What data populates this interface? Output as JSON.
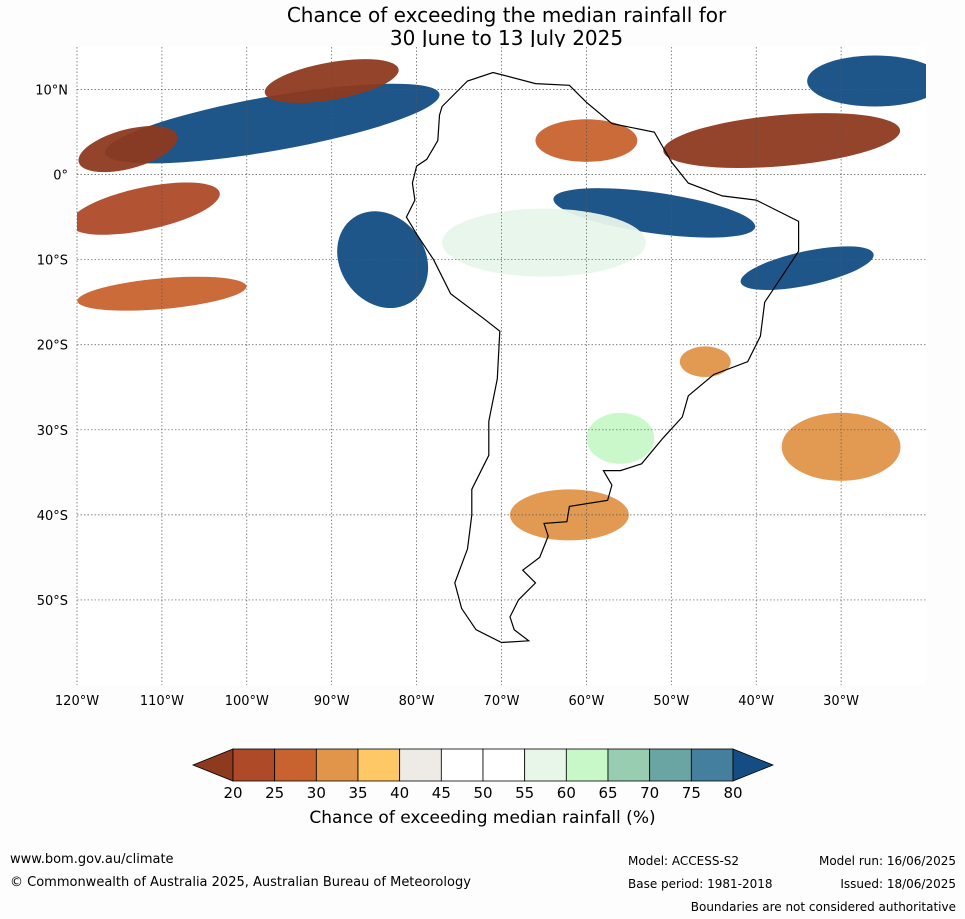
{
  "title": {
    "line1": "Chance of exceeding the median rainfall for",
    "line2": "30 June to 13 July 2025"
  },
  "map": {
    "lon_range": [
      -120,
      -20
    ],
    "lat_range": [
      -60,
      15
    ],
    "lon_ticks": [
      {
        "lon": -120,
        "label": "120°W"
      },
      {
        "lon": -110,
        "label": "110°W"
      },
      {
        "lon": -100,
        "label": "100°W"
      },
      {
        "lon": -90,
        "label": "90°W"
      },
      {
        "lon": -80,
        "label": "80°W"
      },
      {
        "lon": -70,
        "label": "70°W"
      },
      {
        "lon": -60,
        "label": "60°W"
      },
      {
        "lon": -50,
        "label": "50°W"
      },
      {
        "lon": -40,
        "label": "40°W"
      },
      {
        "lon": -30,
        "label": "30°W"
      }
    ],
    "lat_ticks": [
      {
        "lat": 10,
        "label": "10°N"
      },
      {
        "lat": 0,
        "label": "0°"
      },
      {
        "lat": -10,
        "label": "10°S"
      },
      {
        "lat": -20,
        "label": "20°S"
      },
      {
        "lat": -30,
        "label": "30°S"
      },
      {
        "lat": -40,
        "label": "40°S"
      },
      {
        "lat": -50,
        "label": "50°S"
      }
    ],
    "regions": [
      {
        "name": "north-band-west",
        "lon": -97,
        "lat": 6,
        "rx": 20,
        "ry": 3.2,
        "level": 80,
        "rot": 10
      },
      {
        "name": "north-band-east",
        "lon": -26,
        "lat": 11,
        "rx": 8,
        "ry": 3,
        "level": 80,
        "rot": 0
      },
      {
        "name": "equatorial-east",
        "lon": -52,
        "lat": -4.5,
        "rx": 12,
        "ry": 2.4,
        "level": 80,
        "rot": -8
      },
      {
        "name": "ne-brazil-band",
        "lon": -34,
        "lat": -11,
        "rx": 8,
        "ry": 2,
        "level": 80,
        "rot": 12
      },
      {
        "name": "peru-coast",
        "lon": -84,
        "lat": -10,
        "rx": 5,
        "ry": 6,
        "level": 80,
        "rot": 35
      },
      {
        "name": "west-pac-north",
        "lon": -114,
        "lat": 3,
        "rx": 6,
        "ry": 2.3,
        "level": 20,
        "rot": 15
      },
      {
        "name": "caribbean",
        "lon": -90,
        "lat": 11,
        "rx": 8,
        "ry": 2.2,
        "level": 20,
        "rot": 10
      },
      {
        "name": "pacific-dry-1",
        "lon": -112,
        "lat": -4,
        "rx": 9,
        "ry": 2.5,
        "level": 25,
        "rot": 12
      },
      {
        "name": "pacific-dry-2",
        "lon": -110,
        "lat": -14,
        "rx": 10,
        "ry": 1.8,
        "level": 30,
        "rot": 5
      },
      {
        "name": "atlantic-dry",
        "lon": -37,
        "lat": 4,
        "rx": 14,
        "ry": 3,
        "level": 20,
        "rot": 5
      },
      {
        "name": "guiana-dry",
        "lon": -60,
        "lat": 4,
        "rx": 6,
        "ry": 2.5,
        "level": 30,
        "rot": 0
      },
      {
        "name": "south-atlantic-dry",
        "lon": -30,
        "lat": -32,
        "rx": 7,
        "ry": 4,
        "level": 35,
        "rot": 0
      },
      {
        "name": "brazil-se-dry",
        "lon": -46,
        "lat": -22,
        "rx": 3,
        "ry": 1.8,
        "level": 35,
        "rot": 0
      },
      {
        "name": "southern-wet",
        "lon": -62,
        "lat": -40,
        "rx": 7,
        "ry": 3,
        "level": 35,
        "rot": 0
      },
      {
        "name": "amazon-wet",
        "lon": -65,
        "lat": -8,
        "rx": 12,
        "ry": 4,
        "level": 60,
        "rot": 0
      },
      {
        "name": "uruguay-wet",
        "lon": -56,
        "lat": -31,
        "rx": 4,
        "ry": 3,
        "level": 65,
        "rot": 0
      }
    ]
  },
  "colorbar": {
    "colors": [
      "#8e3a1f",
      "#ae4a28",
      "#c8632f",
      "#e0954a",
      "#fdc865",
      "#eeebe6",
      "#ffffff",
      "#ffffff",
      "#e8f6ea",
      "#c8f8c8",
      "#98cdb2",
      "#6ba5a3",
      "#44809d",
      "#134d84"
    ],
    "labels": [
      "20",
      "25",
      "30",
      "35",
      "40",
      "45",
      "50",
      "55",
      "60",
      "65",
      "70",
      "75",
      "80"
    ],
    "title": "Chance of exceeding median rainfall (%)"
  },
  "footer": {
    "url": "www.bom.gov.au/climate",
    "copyright": "© Commonwealth of Australia 2025, Australian Bureau of Meteorology",
    "model": "Model: ACCESS-S2",
    "base_period": "Base period: 1981-2018",
    "model_run": "Model run: 16/06/2025",
    "issued": "Issued: 18/06/2025",
    "disclaimer": "Boundaries are not considered authoritative"
  }
}
